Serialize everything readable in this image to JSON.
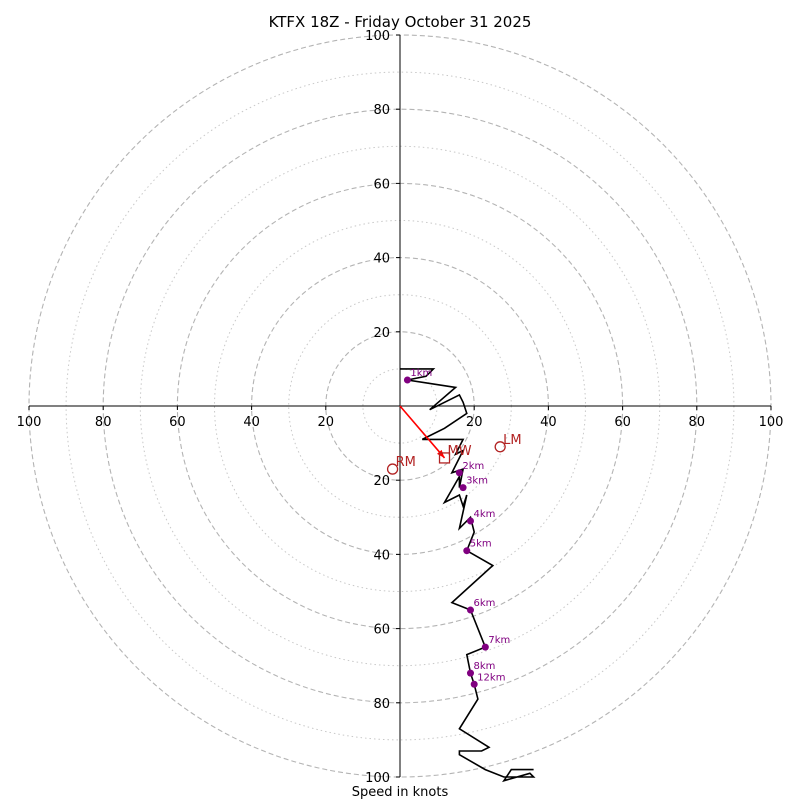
{
  "chart_data": {
    "type": "hodograph",
    "title": "KTFX 18Z - Friday October 31 2025",
    "xlabel": "Speed in knots",
    "units": "knots",
    "range": [
      -100,
      100
    ],
    "ring_major": [
      20,
      40,
      60,
      80,
      100
    ],
    "ring_minor": [
      10,
      30,
      50,
      70,
      90
    ],
    "x_tick_labels": [
      "100",
      "80",
      "60",
      "40",
      "20",
      "20",
      "40",
      "60",
      "80",
      "100"
    ],
    "x_tick_values": [
      -100,
      -80,
      -60,
      -40,
      -20,
      20,
      40,
      60,
      80,
      100
    ],
    "y_tick_labels": [
      "100",
      "80",
      "60",
      "40",
      "20",
      "20",
      "40",
      "60",
      "80",
      "100"
    ],
    "y_tick_values": [
      100,
      80,
      60,
      40,
      20,
      -20,
      -40,
      -60,
      -80,
      -100
    ],
    "profile_color": "#000000",
    "marker_color": "#800080",
    "motion_color": "#b22222",
    "shear_color": "#ff0000",
    "profile": [
      [
        0,
        10
      ],
      [
        9,
        10
      ],
      [
        7,
        8
      ],
      [
        2,
        7
      ],
      [
        15,
        5
      ],
      [
        8,
        -1
      ],
      [
        16,
        3
      ],
      [
        17,
        1
      ],
      [
        18,
        -2
      ],
      [
        12,
        -6
      ],
      [
        6,
        -9
      ],
      [
        17,
        -9
      ],
      [
        15,
        -13
      ],
      [
        17,
        -12
      ],
      [
        14,
        -18
      ],
      [
        17,
        -17
      ],
      [
        16,
        -22
      ],
      [
        16,
        -19
      ],
      [
        12,
        -26
      ],
      [
        16,
        -24
      ],
      [
        17,
        -27
      ],
      [
        18,
        -24
      ],
      [
        16,
        -33
      ],
      [
        19,
        -30
      ],
      [
        20,
        -34
      ],
      [
        18,
        -39
      ],
      [
        25,
        -43
      ],
      [
        14,
        -53
      ],
      [
        19,
        -55
      ],
      [
        23,
        -65
      ],
      [
        18,
        -67
      ],
      [
        19,
        -72
      ],
      [
        20,
        -75
      ],
      [
        21,
        -79
      ],
      [
        16,
        -87
      ],
      [
        24,
        -92
      ],
      [
        22,
        -93
      ],
      [
        16,
        -93
      ],
      [
        16,
        -94
      ],
      [
        23,
        -98
      ],
      [
        28,
        -100
      ],
      [
        36,
        -100
      ],
      [
        35,
        -99
      ],
      [
        28,
        -101
      ],
      [
        30,
        -98
      ],
      [
        36,
        -98
      ]
    ],
    "height_markers": [
      {
        "label": "1km",
        "u": 2,
        "v": 7
      },
      {
        "label": "2km",
        "u": 16,
        "v": -18
      },
      {
        "label": "3km",
        "u": 17,
        "v": -22
      },
      {
        "label": "4km",
        "u": 19,
        "v": -31
      },
      {
        "label": "5km",
        "u": 18,
        "v": -39
      },
      {
        "label": "6km",
        "u": 19,
        "v": -55
      },
      {
        "label": "7km",
        "u": 23,
        "v": -65
      },
      {
        "label": "8km",
        "u": 19,
        "v": -72
      },
      {
        "label": "12km",
        "u": 20,
        "v": -75
      }
    ],
    "storm_motion": [
      {
        "label": "RM",
        "u": -2,
        "v": -17,
        "symbol": "circle"
      },
      {
        "label": "LM",
        "u": 27,
        "v": -11,
        "symbol": "circle"
      },
      {
        "label": "MW",
        "u": 12,
        "v": -14,
        "symbol": "square"
      }
    ],
    "shear_vector": {
      "from": [
        0,
        0
      ],
      "to": [
        12,
        -14
      ]
    }
  }
}
